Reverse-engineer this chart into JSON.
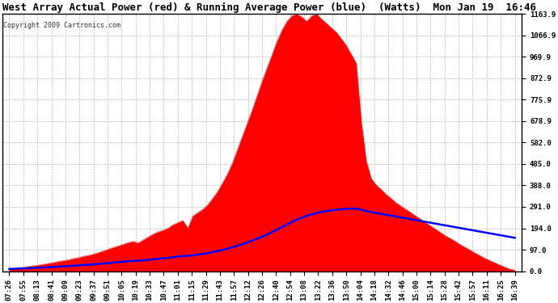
{
  "title": "West Array Actual Power (red) & Running Average Power (blue)  (Watts)  Mon Jan 19  16:46",
  "copyright": "Copyright 2009 Cartronics.com",
  "yticks": [
    0.0,
    97.0,
    194.0,
    291.0,
    388.0,
    485.0,
    582.0,
    678.9,
    775.9,
    872.9,
    969.9,
    1066.9,
    1163.9
  ],
  "ylim": [
    0,
    1163.9
  ],
  "xtick_labels": [
    "07:26",
    "07:55",
    "08:13",
    "08:41",
    "09:09",
    "09:23",
    "09:37",
    "09:51",
    "10:05",
    "10:19",
    "10:33",
    "10:47",
    "11:01",
    "11:15",
    "11:29",
    "11:43",
    "11:57",
    "12:12",
    "12:26",
    "12:40",
    "12:54",
    "13:08",
    "13:22",
    "13:36",
    "13:50",
    "14:04",
    "14:18",
    "14:32",
    "14:46",
    "15:00",
    "15:14",
    "15:28",
    "15:42",
    "15:57",
    "16:11",
    "16:25",
    "16:39"
  ],
  "actual_power": [
    10,
    12,
    14,
    18,
    22,
    25,
    28,
    32,
    36,
    40,
    45,
    48,
    52,
    58,
    62,
    68,
    72,
    78,
    85,
    92,
    100,
    108,
    115,
    122,
    130,
    135,
    128,
    142,
    155,
    168,
    178,
    185,
    195,
    210,
    220,
    230,
    195,
    250,
    265,
    280,
    300,
    330,
    360,
    400,
    440,
    490,
    550,
    610,
    670,
    730,
    795,
    860,
    920,
    980,
    1040,
    1090,
    1130,
    1155,
    1163,
    1150,
    1130,
    1155,
    1163,
    1140,
    1120,
    1100,
    1080,
    1050,
    1020,
    980,
    940,
    680,
    500,
    420,
    390,
    370,
    348,
    330,
    310,
    295,
    280,
    265,
    250,
    235,
    220,
    205,
    190,
    175,
    160,
    148,
    135,
    120,
    108,
    95,
    82,
    70,
    58,
    48,
    38,
    28,
    18,
    10,
    5
  ],
  "running_avg": [
    10,
    11,
    12,
    13,
    14,
    15,
    16,
    17,
    18,
    19,
    21,
    22,
    23,
    25,
    26,
    28,
    29,
    31,
    33,
    35,
    37,
    39,
    41,
    43,
    45,
    47,
    47,
    49,
    51,
    54,
    56,
    58,
    60,
    63,
    66,
    69,
    69,
    72,
    75,
    78,
    82,
    86,
    91,
    96,
    102,
    108,
    115,
    122,
    130,
    138,
    147,
    156,
    166,
    177,
    188,
    199,
    211,
    222,
    233,
    242,
    250,
    257,
    263,
    268,
    272,
    275,
    278,
    280,
    282,
    283,
    283,
    278,
    272,
    267,
    263,
    259,
    255,
    251,
    247,
    243,
    239,
    235,
    231,
    227,
    223,
    219,
    215,
    211,
    207,
    203,
    199,
    195,
    191,
    187,
    183,
    179,
    175,
    171,
    167,
    163,
    159,
    155,
    151
  ],
  "actual_color": "#ff0000",
  "avg_color": "#0000ff",
  "bg_color": "#ffffff",
  "plot_bg_color": "#ffffff",
  "grid_color": "#bbbbbb",
  "title_fontsize": 9,
  "copyright_fontsize": 6,
  "tick_fontsize": 6.5,
  "title_color": "#000000",
  "copyright_color": "#333333"
}
